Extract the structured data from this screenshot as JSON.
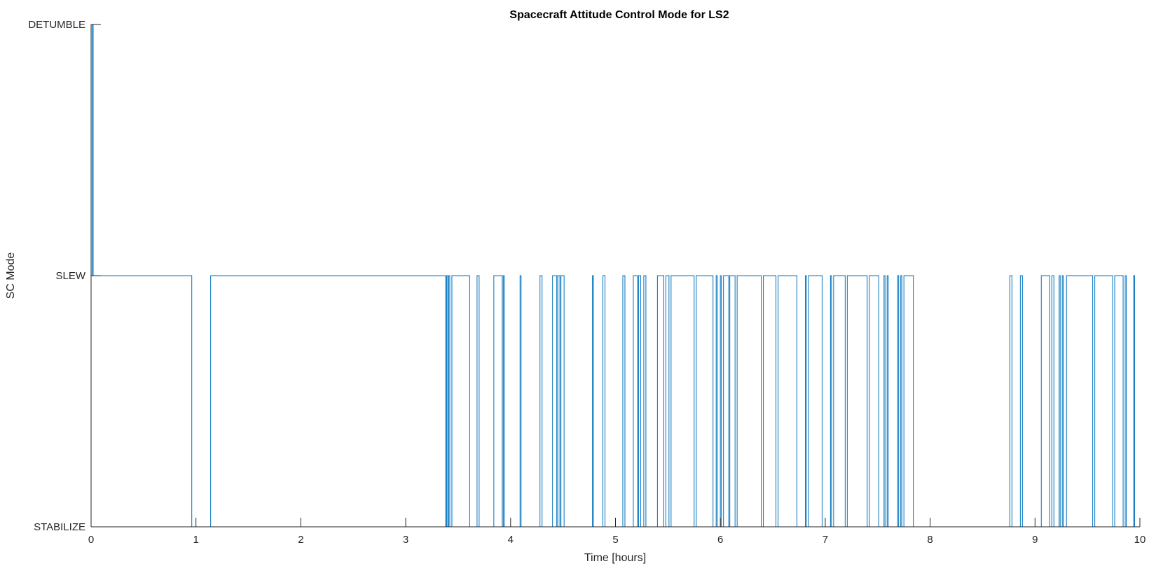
{
  "chart_data": {
    "type": "line",
    "title": "Spacecraft Attitude Control Mode for LS2",
    "xlabel": "Time [hours]",
    "ylabel": "SC Mode",
    "xlim": [
      0,
      10
    ],
    "x_ticks": [
      0,
      1,
      2,
      3,
      4,
      5,
      6,
      7,
      8,
      9,
      10
    ],
    "y_categories": [
      "STABILIZE",
      "SLEW",
      "DETUMBLE"
    ],
    "ylim": [
      0,
      2
    ],
    "grid": false,
    "line_color": "#0072BD",
    "series": [
      {
        "step": "post",
        "x": [
          0,
          0.01,
          0.02,
          0.96,
          1.14,
          3.38,
          3.39,
          3.4,
          3.41,
          3.42,
          3.44,
          3.61,
          3.68,
          3.7,
          3.84,
          3.92,
          3.93,
          3.94,
          4.09,
          4.1,
          4.28,
          4.3,
          4.4,
          4.44,
          4.45,
          4.47,
          4.48,
          4.51,
          4.78,
          4.79,
          4.88,
          4.9,
          5.07,
          5.09,
          5.17,
          5.21,
          5.22,
          5.24,
          5.27,
          5.29,
          5.4,
          5.46,
          5.48,
          5.51,
          5.53,
          5.75,
          5.77,
          5.93,
          5.96,
          5.97,
          6.0,
          6.01,
          6.03,
          6.08,
          6.09,
          6.14,
          6.16,
          6.39,
          6.41,
          6.53,
          6.55,
          6.73,
          6.81,
          6.82,
          6.84,
          6.97,
          7.05,
          7.06,
          7.08,
          7.19,
          7.21,
          7.4,
          7.42,
          7.51,
          7.56,
          7.57,
          7.59,
          7.6,
          7.69,
          7.7,
          7.72,
          7.73,
          7.75,
          7.84,
          8.76,
          8.78,
          8.86,
          8.88,
          9.06,
          9.14,
          9.16,
          9.18,
          9.23,
          9.24,
          9.26,
          9.27,
          9.3,
          9.55,
          9.57,
          9.74,
          9.76,
          9.84,
          9.86,
          9.87,
          9.94,
          9.95
        ],
        "y": [
          1,
          2,
          1,
          0,
          1,
          0,
          1,
          0,
          1,
          0,
          1,
          0,
          1,
          0,
          1,
          0,
          1,
          0,
          1,
          0,
          1,
          0,
          1,
          0,
          1,
          0,
          1,
          0,
          1,
          0,
          1,
          0,
          1,
          0,
          1,
          0,
          1,
          0,
          1,
          0,
          1,
          0,
          1,
          0,
          1,
          0,
          1,
          0,
          1,
          0,
          1,
          0,
          1,
          0,
          1,
          0,
          1,
          0,
          1,
          0,
          1,
          0,
          1,
          0,
          1,
          0,
          1,
          0,
          1,
          0,
          1,
          0,
          1,
          0,
          1,
          0,
          1,
          0,
          1,
          0,
          1,
          0,
          1,
          0,
          1,
          0,
          1,
          0,
          1,
          0,
          1,
          0,
          1,
          0,
          1,
          0,
          1,
          0,
          1,
          0,
          1,
          0,
          1,
          0,
          1,
          0
        ]
      }
    ]
  }
}
